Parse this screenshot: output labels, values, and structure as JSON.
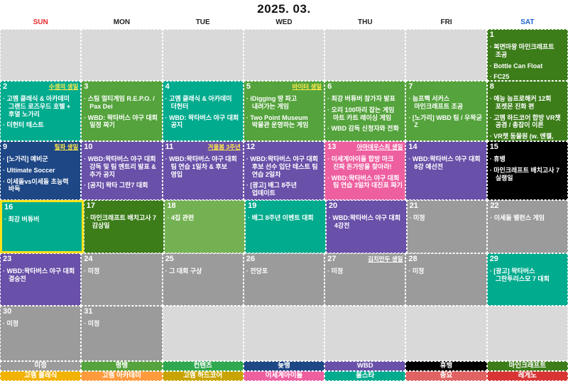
{
  "title": "2025. 03.",
  "colors": {
    "empty": "#d9d9d9",
    "undecided_gray": "#9b9b9b",
    "pyeongbang_green": "#54a33c",
    "contents_green": "#2fa84f",
    "light_green": "#74b153",
    "minecraft_dark_green": "#3c7d1a",
    "late_blue": "#1e4785",
    "wbd_purple": "#6950a8",
    "isedol_pink": "#ee5fa0",
    "rest_black": "#000000",
    "allstar_teal": "#00ab8e",
    "classic_amber": "#f2b200",
    "academy_orange": "#ff9a3d",
    "hardcore_gold": "#c9a400",
    "important_salmon": "#e06262",
    "legeno_red": "#d93434",
    "badge_yellow": "#ffe94c",
    "badge_white": "#ffffff",
    "sun_red": "#e8272c",
    "sat_blue": "#1c62d1",
    "weekday_dark": "#222222",
    "today_border_yellow": "#ffe11a"
  },
  "weekdays": [
    {
      "label": "SUN",
      "color": "#e8272c"
    },
    {
      "label": "MON",
      "color": "#222222"
    },
    {
      "label": "TUE",
      "color": "#222222"
    },
    {
      "label": "WED",
      "color": "#222222"
    },
    {
      "label": "THU",
      "color": "#222222"
    },
    {
      "label": "FRI",
      "color": "#222222"
    },
    {
      "label": "SAT",
      "color": "#1c62d1"
    }
  ],
  "weeks": [
    [
      {
        "empty": true,
        "bg": "#d9d9d9"
      },
      {
        "empty": true,
        "bg": "#d9d9d9"
      },
      {
        "empty": true,
        "bg": "#d9d9d9"
      },
      {
        "empty": true,
        "bg": "#d9d9d9"
      },
      {
        "empty": true,
        "bg": "#d9d9d9"
      },
      {
        "empty": true,
        "bg": "#d9d9d9"
      },
      {
        "day": "1",
        "bg": "#3c7d1a",
        "events": [
          "복면마왕 마인크래프트 조공",
          "Bottle Can Float",
          "FC25"
        ]
      }
    ],
    [
      {
        "day": "2",
        "bg": "#00ab8e",
        "badge": {
          "text": "수셈의 생일",
          "color": "#ffe94c"
        },
        "events": [
          "고멤 클래식 & 아카데미 그랜드 로즈우드 호텔 + 후열 노가리",
          "더헌터 테스트"
        ]
      },
      {
        "day": "3",
        "bg": "#54a33c",
        "events": [
          "스팀 멀티게임 R.E.P.O. / Pax Dei",
          "WBD: 왁타버스 야구 대회 일정 짜기"
        ]
      },
      {
        "day": "4",
        "bg": "#00ab8e",
        "events": [
          "고멤 클래식 & 아카데미 더헌터",
          "WBD: 왁타버스 야구 대회 공지"
        ]
      },
      {
        "day": "5",
        "bg": "#54a33c",
        "badge": {
          "text": "바이터 생일",
          "color": "#ffe94c"
        },
        "events": [
          "iDigging 땅 파고 내려가는 게임",
          "Two Point Museum 박물관 운영하는 게임"
        ]
      },
      {
        "day": "6",
        "bg": "#54a33c",
        "events": [
          "최강 버튜버 참가자 발표",
          "오리 100마리 잡는 게임 마트 카트 레이싱 게임",
          "WBD 감독 신청자와 전화"
        ]
      },
      {
        "day": "7",
        "bg": "#54a33c",
        "events": [
          "눕프핵 서커스 마인크래프트 조공",
          "[노가리] WBD 팀 / 우왁굳 Z"
        ]
      },
      {
        "day": "8",
        "bg": "#3c7d1a",
        "events": [
          "예능 눕프로해커 12회 포켓몬 진화 편",
          "고멤 하드코어 합방 VR챗 공겸 / 총잡이 이론",
          "VR챗 동물원 (w. 엔젤, 그분)"
        ]
      }
    ],
    [
      {
        "day": "9",
        "bg": "#1e4785",
        "badge": {
          "text": "릴파 생일",
          "color": "#ffe94c"
        },
        "events": [
          "[노가리] 예비군",
          "Ultimate Soccer",
          "이세돌vs이세돌 초능력 바둑"
        ]
      },
      {
        "day": "10",
        "bg": "#6950a8",
        "events": [
          "WBD:왁타버스 야구 대회 감독 및 팀 엔트리 발표 & 추가 공지",
          "[공지] 왁타 그란7 대회"
        ]
      },
      {
        "day": "11",
        "bg": "#6950a8",
        "badge": {
          "text": "겨울봄 3주년",
          "color": "#ffe94c"
        },
        "events": [
          "WBD:왁타버스 야구 대회 팀 연습 1일차 & 후보 영입"
        ]
      },
      {
        "day": "12",
        "bg": "#6950a8",
        "events": [
          "WBD:왁타버스 야구 대회 후보 선수 입단 테스트 팀 연습 2일차",
          "[광고] 배그 8주년 업데이트"
        ]
      },
      {
        "day": "13",
        "bg": "#ee5fa0",
        "badge": {
          "text": "아마데우스최 생일",
          "color": "#ffffff"
        },
        "events": [
          "이세계아이돌 합방 마크 진짜 돈가방을 찾아라!",
          "WBD:왁타버스 야구 대회 팀 연습 3일차 대진표 짜기"
        ]
      },
      {
        "day": "14",
        "bg": "#6950a8",
        "events": [
          "WBD:왁타버스 야구 대회 8강 예선전"
        ]
      },
      {
        "day": "15",
        "bg": "#000000",
        "events": [
          "휴뱅",
          "마인크래프트 배치고사 7 실랭일"
        ]
      }
    ],
    [
      {
        "day": "16",
        "bg": "#00ab8e",
        "highlight": true,
        "events": [
          "최강 버튜버"
        ]
      },
      {
        "day": "17",
        "bg": "#3c7d1a",
        "events": [
          "마인크래프트 배치고사 7 감상일"
        ]
      },
      {
        "day": "18",
        "bg": "#74b153",
        "events": [
          "4집 관련"
        ]
      },
      {
        "day": "19",
        "bg": "#00ab8e",
        "events": [
          "배그 8주년 이벤트 대회"
        ]
      },
      {
        "day": "20",
        "bg": "#6950a8",
        "events": [
          "WBD:왁타버스 야구 대회 4강전"
        ]
      },
      {
        "day": "21",
        "bg": "#9b9b9b",
        "events": [
          "미정"
        ]
      },
      {
        "day": "22",
        "bg": "#9b9b9b",
        "events": [
          "이세돌 밸런스 게임"
        ]
      }
    ],
    [
      {
        "day": "23",
        "bg": "#6950a8",
        "events": [
          "WBD:왁타버스 야구 대회 결승전"
        ]
      },
      {
        "day": "24",
        "bg": "#9b9b9b",
        "events": [
          "미정"
        ]
      },
      {
        "day": "25",
        "bg": "#9b9b9b",
        "events": [
          "그 대회 구상"
        ]
      },
      {
        "day": "26",
        "bg": "#9b9b9b",
        "events": [
          "전당포"
        ]
      },
      {
        "day": "27",
        "bg": "#9b9b9b",
        "badge": {
          "text": "김치만두 생일",
          "color": "#ffffff"
        },
        "events": [
          "미정"
        ]
      },
      {
        "day": "28",
        "bg": "#9b9b9b",
        "events": [
          "미정"
        ]
      },
      {
        "day": "29",
        "bg": "#00ab8e",
        "events": [
          "[광고] 왁타버스 그란투리스모 7 대회"
        ]
      }
    ],
    [
      {
        "day": "30",
        "bg": "#9b9b9b",
        "events": [
          "미정"
        ]
      },
      {
        "day": "31",
        "bg": "#9b9b9b",
        "events": [
          "미정"
        ]
      },
      {
        "empty": true,
        "bg": "#d9d9d9"
      },
      {
        "empty": true,
        "bg": "#d9d9d9"
      },
      {
        "empty": true,
        "bg": "#d9d9d9"
      },
      {
        "empty": true,
        "bg": "#d9d9d9"
      },
      {
        "empty": true,
        "bg": "#d9d9d9"
      }
    ]
  ],
  "legend": {
    "rows": [
      [
        {
          "label": "미정",
          "bg": "#9b9b9b"
        },
        {
          "label": "평뱅",
          "bg": "#54a33c"
        },
        {
          "label": "컨텐츠",
          "bg": "#2fa84f"
        },
        {
          "label": "늦뱅",
          "bg": "#1e4785"
        },
        {
          "label": "WBD",
          "bg": "#6950a8"
        },
        {
          "label": "휴뱅",
          "bg": "#000000"
        },
        {
          "label": "마인크래프트",
          "bg": "#3c7d1a"
        }
      ],
      [
        {
          "label": "고멤 클래식",
          "bg": "#f2b200"
        },
        {
          "label": "고멤 아카데미",
          "bg": "#ff9a3d"
        },
        {
          "label": "고멤 하드코어",
          "bg": "#c9a400"
        },
        {
          "label": "이세계아이돌",
          "bg": "#ee5fa0"
        },
        {
          "label": "올스타",
          "bg": "#00ab8e"
        },
        {
          "label": "중요",
          "bg": "#e06262"
        },
        {
          "label": "레게노",
          "bg": "#d93434"
        }
      ]
    ]
  }
}
